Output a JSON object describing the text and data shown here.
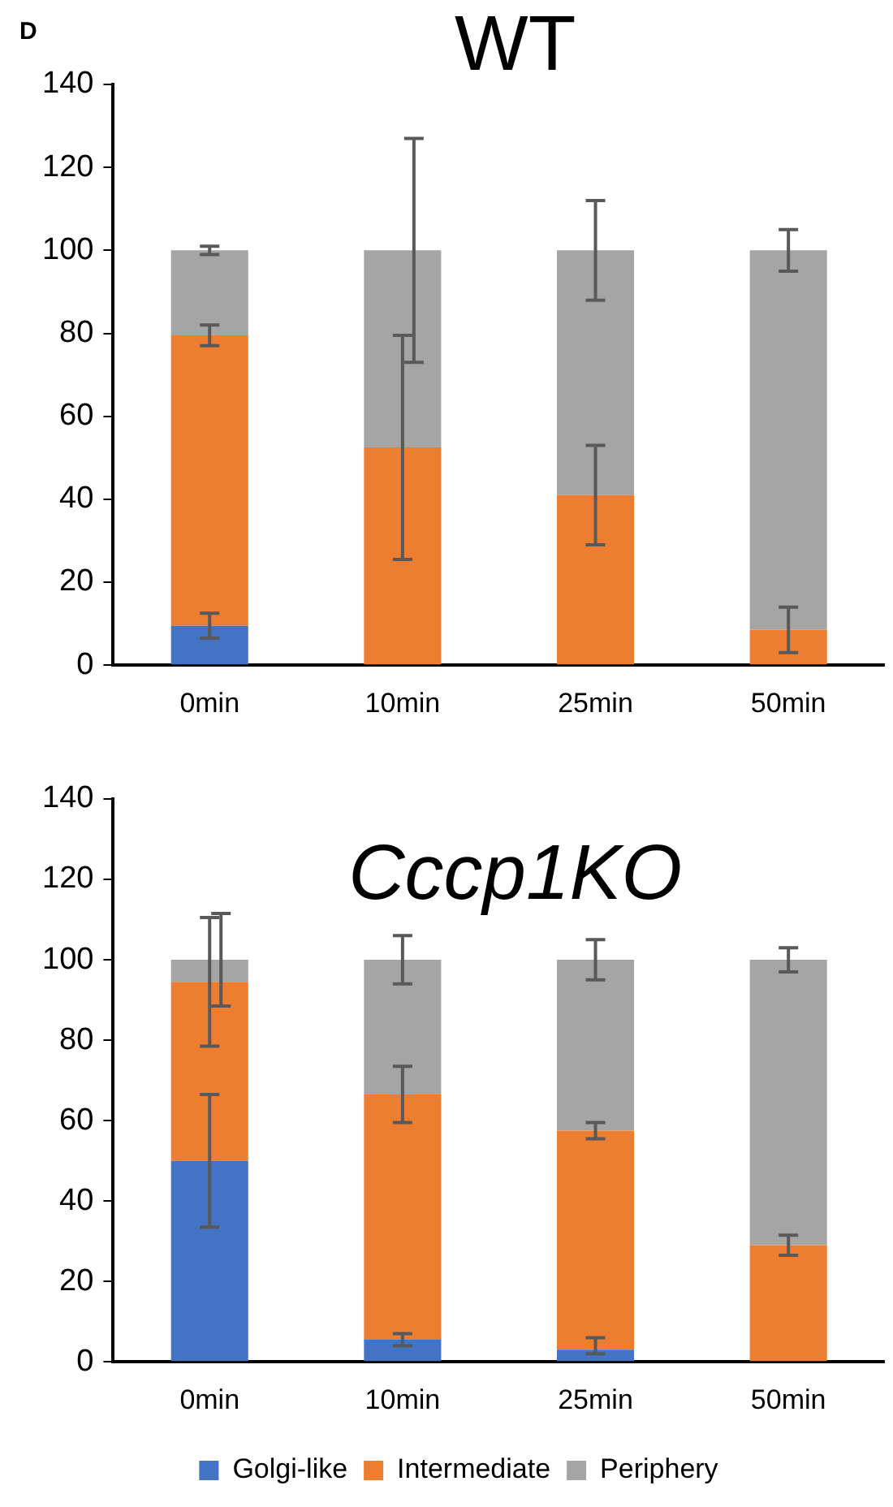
{
  "chart_data": [
    {
      "type": "bar",
      "title": "WT",
      "annotations": [
        "D"
      ],
      "categories": [
        "0min",
        "10min",
        "25min",
        "50min"
      ],
      "stacked": true,
      "ylim": [
        0,
        140
      ],
      "yticks": [
        0,
        20,
        40,
        60,
        80,
        100,
        120,
        140
      ],
      "grid": false,
      "legend": false,
      "series": [
        {
          "color": "#4472c4",
          "values": [
            9.5,
            0,
            0,
            0
          ],
          "errors": [
            3,
            null,
            null,
            null
          ]
        },
        {
          "color": "#ed7d31",
          "values": [
            70,
            52.5,
            41,
            8.5
          ],
          "errors": [
            2.5,
            27,
            12,
            5.5
          ]
        },
        {
          "color": "#a5a5a5",
          "values": [
            20.5,
            47.5,
            59,
            91.5
          ],
          "errors": [
            1,
            27,
            12,
            5
          ]
        }
      ]
    },
    {
      "type": "bar",
      "title": "Cccp1KO",
      "categories": [
        "0min",
        "10min",
        "25min",
        "50min"
      ],
      "stacked": true,
      "ylim": [
        0,
        140
      ],
      "yticks": [
        0,
        20,
        40,
        60,
        80,
        100,
        120,
        140
      ],
      "grid": false,
      "legend": "bottom",
      "series": [
        {
          "name": "Golgi-like",
          "color": "#4472c4",
          "values": [
            50,
            5.5,
            3,
            0
          ],
          "errors": [
            16.5,
            1.5,
            [
              2,
              6
            ],
            null
          ]
        },
        {
          "name": "Intermediate",
          "color": "#ed7d31",
          "values": [
            44.5,
            61,
            54.5,
            29
          ],
          "errors": [
            16,
            7,
            2,
            2.5
          ]
        },
        {
          "name": "Periphery",
          "color": "#a5a5a5",
          "values": [
            5.5,
            33.5,
            42.5,
            71
          ],
          "errors": [
            11.5,
            6,
            5,
            3
          ]
        }
      ]
    }
  ]
}
